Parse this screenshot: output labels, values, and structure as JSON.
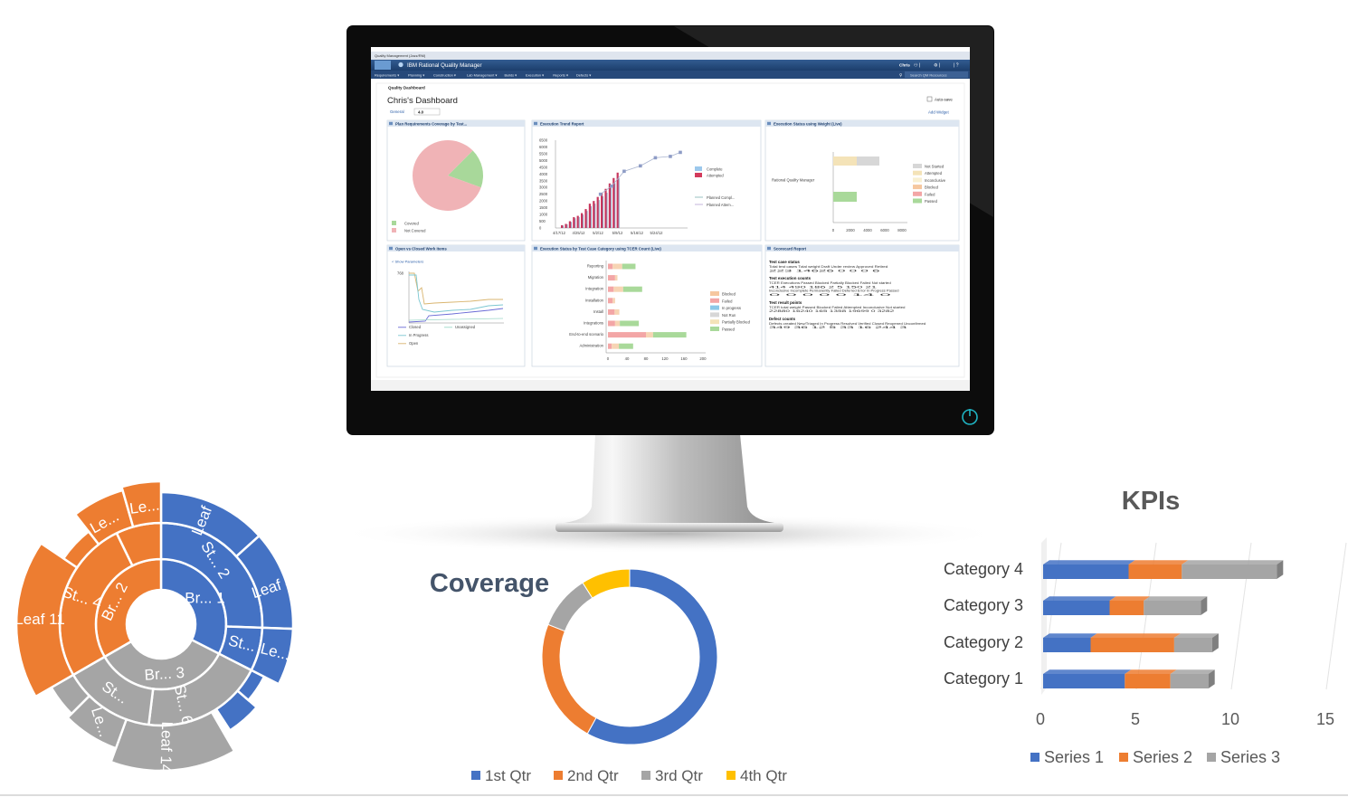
{
  "screen": {
    "window_title": "Quality Management (Jazz/RM)",
    "app_title": "IBM Rational Quality Manager",
    "user": "Chris",
    "nav": [
      "Requirements",
      "Planning",
      "Construction",
      "Lab Management",
      "Builds",
      "Execution",
      "Reports",
      "Defects"
    ],
    "search_placeholder": "Search QM Resources",
    "panel_title": "Quality Dashboard",
    "dashboard_title": "Chris's Dashboard",
    "tab_general": "General",
    "tab_version": "4.0",
    "autosave_label": "Auto-save",
    "add_widget": "Add Widget",
    "widgets": {
      "plan_coverage": {
        "title": "Plan Requirements Coverage by Test...",
        "legend": [
          "Covered",
          "Not Covered"
        ],
        "chart_data": {
          "type": "pie",
          "labels": [
            "Covered",
            "Not Covered"
          ],
          "values": [
            18,
            82
          ],
          "colors": [
            "#a8d89a",
            "#f0b3b6"
          ]
        }
      },
      "execution_trend": {
        "title": "Execution Trend Report",
        "y_ticks": [
          "6500",
          "6000",
          "5500",
          "5000",
          "4500",
          "4000",
          "3500",
          "3000",
          "2500",
          "2000",
          "1500",
          "1000",
          "500",
          "0"
        ],
        "x_ticks": [
          "4/17/12",
          "4/25/12",
          "5/2/12",
          "5/9/12",
          "5/16/12",
          "5/24/12"
        ],
        "legend_bars": [
          "Complete",
          "Attempted"
        ],
        "legend_lines": [
          "Planned Compl...",
          "Planned Attem..."
        ],
        "chart_data": {
          "type": "bar",
          "ylim": [
            0,
            6500
          ],
          "bars": [
            200,
            300,
            500,
            800,
            900,
            1100,
            1400,
            1800,
            2000,
            2300,
            2600,
            2900,
            3300,
            3700,
            4100
          ],
          "line": [
            [
              0.36,
              2500
            ],
            [
              0.45,
              3100
            ],
            [
              0.55,
              4200
            ],
            [
              0.68,
              4600
            ],
            [
              0.8,
              5200
            ],
            [
              0.92,
              5300
            ],
            [
              1.0,
              5600
            ]
          ]
        }
      },
      "exec_status_weight": {
        "title": "Execution Status using Weight (Live)",
        "category": "Rational Quality Manager",
        "legend": [
          "Not Started",
          "Attempted",
          "Inconclusive",
          "Blocked",
          "Failed",
          "Passed"
        ],
        "x_ticks": [
          "0",
          "2000",
          "4000",
          "6000",
          "8000"
        ],
        "chart_data": {
          "type": "bar",
          "values": [
            {
              "name": "Attempted",
              "value": 2600
            },
            {
              "name": "Not Started",
              "value": 2500
            },
            {
              "name": "Passed",
              "value": 2600
            }
          ]
        }
      },
      "open_closed": {
        "title": "Open vs Closed Work Items",
        "show_params": "< Show Parameters",
        "y_top": "768",
        "legend": [
          "Closed",
          "Unassigned",
          "In Progress",
          "Open"
        ]
      },
      "exec_by_category": {
        "title": "Execution Status by Test Case Category using TCER Count (Live)",
        "categories": [
          "Reporting",
          "Migration",
          "Integration",
          "Installation",
          "Install",
          "Integrations",
          "End-to-end scenario",
          "Administration"
        ],
        "legend": [
          "Blocked",
          "Failed",
          "In progress",
          "Not Run",
          "Partially Blocked",
          "Passed"
        ],
        "x_ticks": [
          "0",
          "40",
          "80",
          "120",
          "160",
          "200"
        ],
        "chart_data": {
          "type": "bar",
          "stacks": [
            [
              10,
              20,
              28
            ],
            [
              15,
              5,
              0
            ],
            [
              12,
              20,
              40
            ],
            [
              10,
              5,
              0
            ],
            [
              14,
              10,
              0
            ],
            [
              15,
              10,
              40
            ],
            [
              80,
              15,
              70
            ],
            [
              8,
              15,
              30
            ]
          ]
        }
      },
      "scorecard": {
        "title": "Scorecard Report",
        "sections": [
          {
            "heading": "Test case status",
            "rows": [
              "Total test cases   Total weight   Draft   Under review   Approved   Retired",
              "223                 14626          0       0              0          6"
            ]
          },
          {
            "heading": "Test execution counts",
            "rows": [
              "TCER   Executions Passed   Blocked   Partially Blocked   Failed   Not started",
              "414    490           186   2         5                   150      21",
              "Inconclusive  Incomplete  Permanently Failed  Deferred  Error  In Progress  Passed",
              "0             0           0                   0         0      14           0"
            ]
          },
          {
            "heading": "Test result points",
            "rows": [
              "TCER total weight   Passed   Blocked   Failed   Attempted   Inconclusive   Not started",
              "22880               16240    165       1358     19699       0              3282"
            ]
          },
          {
            "heading": "Defect counts",
            "rows": [
              "Defects created   New/Triaged   In Progress   Resolved   Verified   Closed   Reopened   Unconfirmed",
              "349               36            12            5          33         16       244      3"
            ]
          }
        ]
      }
    }
  },
  "sunburst": {
    "labels": {
      "br1": "Br... 1",
      "st2": "St... 2",
      "leaf5": "Leaf 5",
      "leaf4": "Leaf 4",
      "st_b": "St...",
      "le_b": "Le...",
      "br2": "Br... 2",
      "st4": "St... 4",
      "leaf11": "Leaf 11",
      "le_o1": "Le...",
      "le_o2": "Le...",
      "br3": "Br... 3",
      "st6": "St... 6",
      "leaf14": "Leaf 14",
      "st_g": "St...",
      "le_g": "Le..."
    },
    "colors": {
      "blue": "#4472c4",
      "orange": "#ed7d31",
      "gray": "#a5a5a5"
    },
    "chart_data": {
      "type": "sunburst",
      "branches": [
        {
          "name": "Br... 1",
          "value": 11,
          "color": "#4472c4"
        },
        {
          "name": "Br... 2",
          "value": 9,
          "color": "#ed7d31"
        },
        {
          "name": "Br... 3",
          "value": 14,
          "color": "#a5a5a5"
        }
      ]
    }
  },
  "coverage": {
    "title": "Coverage",
    "legend": [
      "1st Qtr",
      "2nd Qtr",
      "3rd Qtr",
      "4th Qtr"
    ],
    "colors": [
      "#4472c4",
      "#ed7d31",
      "#a5a5a5",
      "#ffc000"
    ],
    "chart_data": {
      "type": "pie",
      "labels": [
        "1st Qtr",
        "2nd Qtr",
        "3rd Qtr",
        "4th Qtr"
      ],
      "values": [
        58,
        23,
        10,
        9
      ]
    }
  },
  "kpis": {
    "title": "KPIs",
    "colors": [
      "#4472c4",
      "#ed7d31",
      "#a5a5a5"
    ],
    "chart_data": {
      "type": "bar",
      "title": "KPIs",
      "categories": [
        "Category 1",
        "Category 2",
        "Category 3",
        "Category 4"
      ],
      "series": [
        {
          "name": "Series 1",
          "values": [
            4.3,
            2.5,
            3.5,
            4.5
          ]
        },
        {
          "name": "Series 2",
          "values": [
            2.4,
            4.4,
            1.8,
            2.8
          ]
        },
        {
          "name": "Series 3",
          "values": [
            2,
            2,
            3,
            5
          ]
        }
      ],
      "x_ticks": [
        "0",
        "5",
        "10",
        "15"
      ],
      "xlim": [
        0,
        15
      ],
      "legend": "bottom"
    }
  }
}
